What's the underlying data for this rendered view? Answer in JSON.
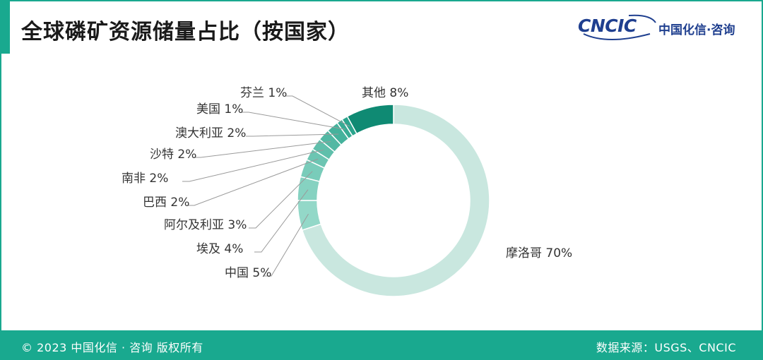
{
  "title": "全球磷矿资源储量占比（按国家）",
  "logo": {
    "mark": "CNCIC",
    "name": "中国化信·咨询"
  },
  "footer": {
    "copyright": "© 2023 中国化信 · 咨询  版权所有",
    "source": "数据来源：USGS、CNCIC"
  },
  "colors": {
    "accent": "#19a98f",
    "morocco": "#c9e7df",
    "other": "#0f8a73",
    "mid": "#7fcfbd"
  },
  "chart_data": {
    "type": "pie",
    "donut": true,
    "title": "全球磷矿资源储量占比（按国家）",
    "slices": [
      {
        "name": "摩洛哥",
        "value": 70,
        "label": "摩洛哥 70%"
      },
      {
        "name": "中国",
        "value": 5,
        "label": "中国 5%"
      },
      {
        "name": "埃及",
        "value": 4,
        "label": "埃及 4%"
      },
      {
        "name": "阿尔及利亚",
        "value": 3,
        "label": "阿尔及利亚 3%"
      },
      {
        "name": "巴西",
        "value": 2,
        "label": "巴西 2%"
      },
      {
        "name": "南非",
        "value": 2,
        "label": "南非 2%"
      },
      {
        "name": "沙特",
        "value": 2,
        "label": "沙特 2%"
      },
      {
        "name": "澳大利亚",
        "value": 2,
        "label": "澳大利亚 2%"
      },
      {
        "name": "美国",
        "value": 1,
        "label": "美国 1%"
      },
      {
        "name": "芬兰",
        "value": 1,
        "label": "芬兰 1%"
      },
      {
        "name": "其他",
        "value": 8,
        "label": "其他 8%"
      }
    ]
  }
}
